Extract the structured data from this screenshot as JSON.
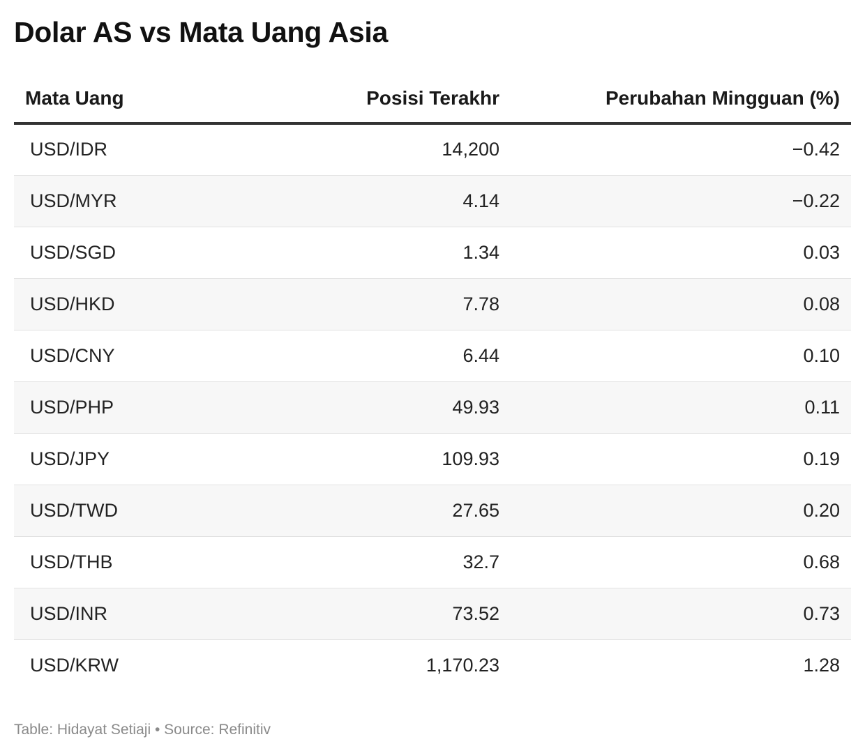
{
  "chart_data": {
    "type": "table",
    "title": "Dolar AS vs Mata Uang Asia",
    "columns": [
      "Mata Uang",
      "Posisi Terakhr",
      "Perubahan Mingguan (%)"
    ],
    "rows": [
      {
        "currency": "USD/IDR",
        "last": "14,200",
        "change": "−0.42"
      },
      {
        "currency": "USD/MYR",
        "last": "4.14",
        "change": "−0.22"
      },
      {
        "currency": "USD/SGD",
        "last": "1.34",
        "change": "0.03"
      },
      {
        "currency": "USD/HKD",
        "last": "7.78",
        "change": "0.08"
      },
      {
        "currency": "USD/CNY",
        "last": "6.44",
        "change": "0.10"
      },
      {
        "currency": "USD/PHP",
        "last": "49.93",
        "change": "0.11"
      },
      {
        "currency": "USD/JPY",
        "last": "109.93",
        "change": "0.19"
      },
      {
        "currency": "USD/TWD",
        "last": "27.65",
        "change": "0.20"
      },
      {
        "currency": "USD/THB",
        "last": "32.7",
        "change": "0.68"
      },
      {
        "currency": "USD/INR",
        "last": "73.52",
        "change": "0.73"
      },
      {
        "currency": "USD/KRW",
        "last": "1,170.23",
        "change": "1.28"
      }
    ],
    "footer": "Table: Hidayat Setiaji • Source: Refinitiv"
  }
}
